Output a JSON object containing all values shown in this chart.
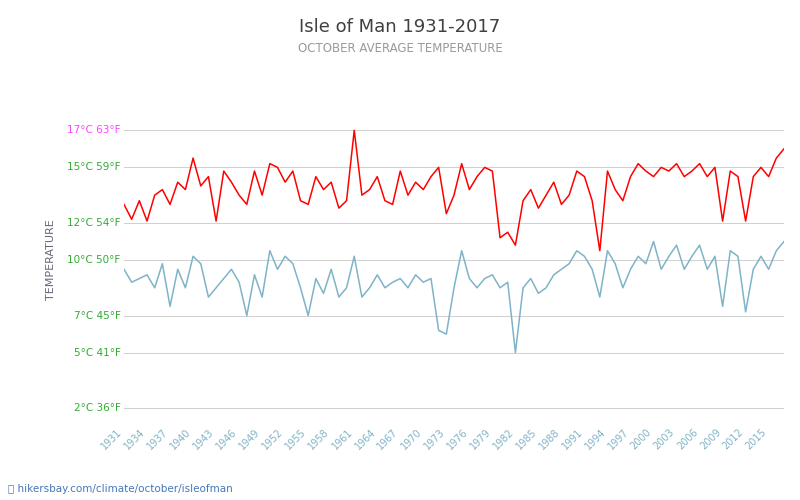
{
  "title": "Isle of Man 1931-2017",
  "subtitle": "OCTOBER AVERAGE TEMPERATURE",
  "ylabel": "TEMPERATURE",
  "xlabel_url": "hikersbay.com/climate/october/isleofman",
  "years": [
    1931,
    1932,
    1933,
    1934,
    1935,
    1936,
    1937,
    1938,
    1939,
    1940,
    1941,
    1942,
    1943,
    1944,
    1945,
    1946,
    1947,
    1948,
    1949,
    1950,
    1951,
    1952,
    1953,
    1954,
    1955,
    1956,
    1957,
    1958,
    1959,
    1960,
    1961,
    1962,
    1963,
    1964,
    1965,
    1966,
    1967,
    1968,
    1969,
    1970,
    1971,
    1972,
    1973,
    1974,
    1975,
    1976,
    1977,
    1978,
    1979,
    1980,
    1981,
    1982,
    1983,
    1984,
    1985,
    1986,
    1987,
    1988,
    1989,
    1990,
    1991,
    1992,
    1993,
    1994,
    1995,
    1996,
    1997,
    1998,
    1999,
    2000,
    2001,
    2002,
    2003,
    2004,
    2005,
    2006,
    2007,
    2008,
    2009,
    2010,
    2011,
    2012,
    2013,
    2014,
    2015,
    2016,
    2017
  ],
  "day_temps": [
    13.0,
    12.2,
    13.2,
    12.1,
    13.5,
    13.8,
    13.0,
    14.2,
    13.8,
    15.5,
    14.0,
    14.5,
    12.1,
    14.8,
    14.2,
    13.5,
    13.0,
    14.8,
    13.5,
    15.2,
    15.0,
    14.2,
    14.8,
    13.2,
    13.0,
    14.5,
    13.8,
    14.2,
    12.8,
    13.2,
    17.0,
    13.5,
    13.8,
    14.5,
    13.2,
    13.0,
    14.8,
    13.5,
    14.2,
    13.8,
    14.5,
    15.0,
    12.5,
    13.5,
    15.2,
    13.8,
    14.5,
    15.0,
    14.8,
    11.2,
    11.5,
    10.8,
    13.2,
    13.8,
    12.8,
    13.5,
    14.2,
    13.0,
    13.5,
    14.8,
    14.5,
    13.2,
    10.5,
    14.8,
    13.8,
    13.2,
    14.5,
    15.2,
    14.8,
    14.5,
    15.0,
    14.8,
    15.2,
    14.5,
    14.8,
    15.2,
    14.5,
    15.0,
    12.1,
    14.8,
    14.5,
    12.1,
    14.5,
    15.0,
    14.5,
    15.5,
    16.0
  ],
  "night_temps": [
    9.5,
    8.8,
    9.0,
    9.2,
    8.5,
    9.8,
    7.5,
    9.5,
    8.5,
    10.2,
    9.8,
    8.0,
    8.5,
    9.0,
    9.5,
    8.8,
    7.0,
    9.2,
    8.0,
    10.5,
    9.5,
    10.2,
    9.8,
    8.5,
    7.0,
    9.0,
    8.2,
    9.5,
    8.0,
    8.5,
    10.2,
    8.0,
    8.5,
    9.2,
    8.5,
    8.8,
    9.0,
    8.5,
    9.2,
    8.8,
    9.0,
    6.2,
    6.0,
    8.5,
    10.5,
    9.0,
    8.5,
    9.0,
    9.2,
    8.5,
    8.8,
    5.0,
    8.5,
    9.0,
    8.2,
    8.5,
    9.2,
    9.5,
    9.8,
    10.5,
    10.2,
    9.5,
    8.0,
    10.5,
    9.8,
    8.5,
    9.5,
    10.2,
    9.8,
    11.0,
    9.5,
    10.2,
    10.8,
    9.5,
    10.2,
    10.8,
    9.5,
    10.2,
    7.5,
    10.5,
    10.2,
    7.2,
    9.5,
    10.2,
    9.5,
    10.5,
    11.0
  ],
  "yticks_c": [
    2,
    5,
    7,
    10,
    12,
    15,
    17
  ],
  "yticks_f": [
    36,
    41,
    45,
    50,
    54,
    59,
    63
  ],
  "ytick_colors": [
    "green",
    "green",
    "green",
    "green",
    "green",
    "green",
    "magenta"
  ],
  "ylim": [
    1.5,
    18.5
  ],
  "day_color": "#ff0000",
  "night_color": "#7fb3c8",
  "grid_color": "#d0d0d0",
  "title_color": "#404040",
  "subtitle_color": "#999999",
  "tick_label_color_green": "#33aa33",
  "tick_label_color_magenta": "#ff44ff",
  "url_color": "#4477bb",
  "background_color": "#ffffff",
  "xtick_color": "#7fb3c8",
  "ylabel_color": "#666677",
  "legend_text_color": "#555555"
}
